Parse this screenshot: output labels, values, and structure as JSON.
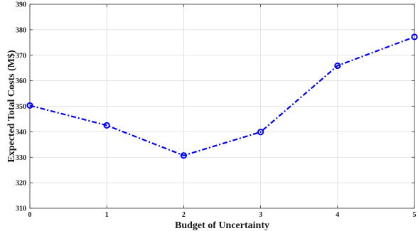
{
  "chart_data": {
    "type": "line",
    "title": "",
    "xlabel": "Budget of Uncertainty",
    "ylabel": "Expected Total Costs (M$)",
    "x": [
      0,
      1,
      2,
      3,
      4,
      5
    ],
    "xticks": [
      "0",
      "1",
      "2",
      "3",
      "4",
      "5"
    ],
    "yticks": [
      "310",
      "320",
      "330",
      "340",
      "350",
      "360",
      "370",
      "380",
      "390"
    ],
    "xlim": [
      0,
      5
    ],
    "ylim": [
      310,
      390
    ],
    "grid": true,
    "legend": "none",
    "series": [
      {
        "values": [
          350.3,
          342.5,
          330.7,
          339.9,
          365.9,
          377.2
        ],
        "color": "#0000ff",
        "line_style": "dash-dot",
        "marker": "circle"
      }
    ]
  }
}
